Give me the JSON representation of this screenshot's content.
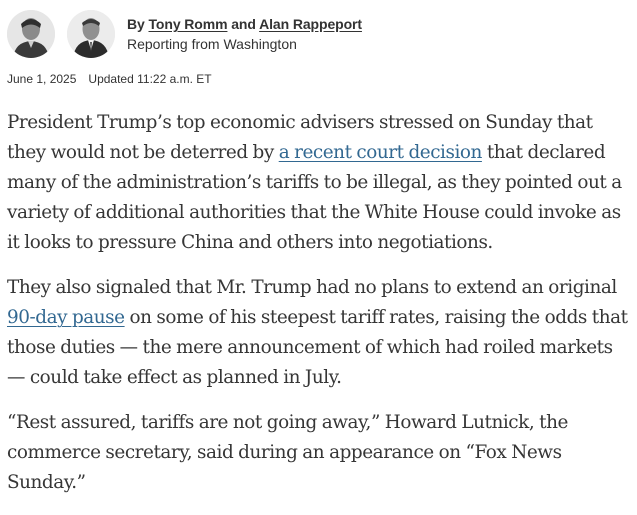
{
  "byline": {
    "prefix": "By",
    "author1": "Tony Romm",
    "conjunction": "and",
    "author2": "Alan Rappeport",
    "location": "Reporting from Washington"
  },
  "dateline": {
    "date": "June 1, 2025",
    "updated": "Updated 11:22 a.m. ET"
  },
  "paragraphs": {
    "p1": {
      "before": "President Trump’s top economic advisers stressed on Sunday that they would not be deterred by ",
      "link": "a recent court decision",
      "after": " that declared many of the administration’s tariffs to be illegal, as they pointed out a variety of additional authorities that the White House could invoke as it looks to pressure China and others into negotiations."
    },
    "p2": {
      "before": "They also signaled that Mr. Trump had no plans to extend an original ",
      "link": "90-day pause",
      "after": " on some of his steepest tariff rates, raising the odds that those duties — the mere announcement of which had roiled markets — could take effect as planned in July."
    },
    "p3": {
      "text": "“Rest assured, tariffs are not going away,” Howard Lutnick, the commerce secretary, said during an appearance on “Fox News Sunday.”"
    }
  },
  "colors": {
    "link": "#326891",
    "body_text": "#363636"
  }
}
